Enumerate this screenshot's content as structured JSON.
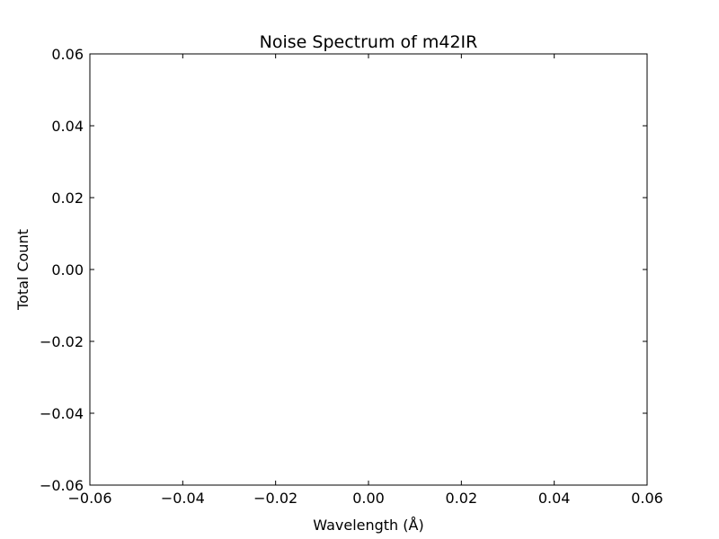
{
  "chart_data": {
    "type": "line",
    "title": "Noise Spectrum of m42IR",
    "xlabel": "Wavelength (Å)",
    "ylabel": "Total Count",
    "xlim": [
      -0.06,
      0.06
    ],
    "ylim": [
      -0.06,
      0.06
    ],
    "x_ticks": [
      -0.06,
      -0.04,
      -0.02,
      0.0,
      0.02,
      0.04,
      0.06
    ],
    "y_ticks": [
      -0.06,
      -0.04,
      -0.02,
      0.0,
      0.02,
      0.04,
      0.06
    ],
    "x_tick_labels": [
      "−0.06",
      "−0.04",
      "−0.02",
      "0.00",
      "0.02",
      "0.04",
      "0.06"
    ],
    "y_tick_labels": [
      "−0.06",
      "−0.04",
      "−0.02",
      "0.00",
      "0.02",
      "0.04",
      "0.06"
    ],
    "series": [],
    "grid": false,
    "colors": {
      "axes": "#000000",
      "background": "#ffffff"
    }
  }
}
